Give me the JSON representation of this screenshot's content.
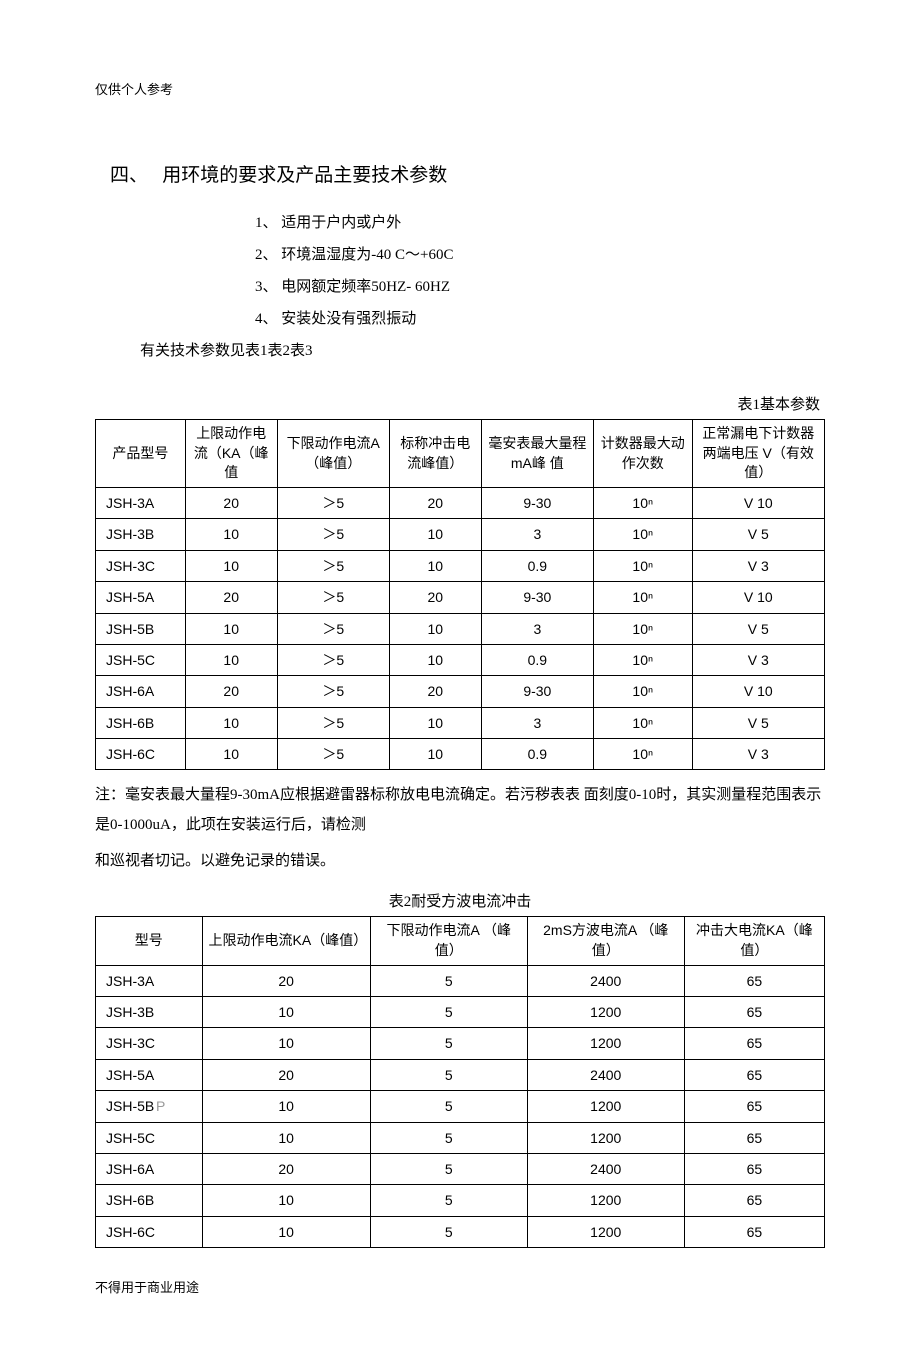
{
  "header_note": "仅供个人参考",
  "footer_note": "不得用于商业用途",
  "section": {
    "number": "四、",
    "title": "用环境的要求及产品主要技术参数",
    "env_items": [
      "1、 适用于户内或户外",
      "2、 环境温湿度为-40 C～+60C",
      "3、 电网额定频率50HZ- 60HZ",
      "4、 安装处没有强烈振动"
    ],
    "param_note": "有关技术参数见表1表2表3"
  },
  "table1": {
    "caption": "表1基本参数",
    "headers": [
      "产品型号",
      "上限动作电流（KA（峰值",
      "下限动作电流A （峰值）",
      "标称冲击电流峰值）",
      "毫安表最大量程mA峰 值",
      "计数器最大动作次数",
      "正常漏电下计数器两端电压 V（有效值）"
    ],
    "col_widths": [
      "80",
      "82",
      "100",
      "82",
      "100",
      "88",
      "118"
    ],
    "rows": [
      [
        "JSH-3A",
        "20",
        "＞5",
        "20",
        "9-30",
        "10ⁿ",
        "V 10"
      ],
      [
        "JSH-3B",
        "10",
        "＞5",
        "10",
        "3",
        "10ⁿ",
        "V 5"
      ],
      [
        "JSH-3C",
        "10",
        "＞5",
        "10",
        "0.9",
        "10ⁿ",
        "V 3"
      ],
      [
        "JSH-5A",
        "20",
        "＞5",
        "20",
        "9-30",
        "10ⁿ",
        "V 10"
      ],
      [
        "JSH-5B",
        "10",
        "＞5",
        "10",
        "3",
        "10ⁿ",
        "V 5"
      ],
      [
        "JSH-5C",
        "10",
        "＞5",
        "10",
        "0.9",
        "10ⁿ",
        "V 3"
      ],
      [
        "JSH-6A",
        "20",
        "＞5",
        "20",
        "9-30",
        "10ⁿ",
        "V 10"
      ],
      [
        "JSH-6B",
        "10",
        "＞5",
        "10",
        "3",
        "10ⁿ",
        "V 5"
      ],
      [
        "JSH-6C",
        "10",
        "＞5",
        "10",
        "0.9",
        "10ⁿ",
        "V 3"
      ]
    ],
    "note": "注：毫安表最大量程9-30mA应根据避雷器标称放电电流确定。若污秽表表 面刻度0-10时，其实测量程范围表示是0-1000uA，此项在安装运行后，请检测",
    "note2": "和巡视者切记。以避免记录的错误。"
  },
  "table2": {
    "caption": "表2耐受方波电流冲击",
    "headers": [
      "型号",
      "上限动作电流KA（峰值）",
      "下限动作电流A （峰值）",
      "2mS方波电流A （峰值）",
      "冲击大电流KA（峰值）"
    ],
    "col_widths": [
      "95",
      "150",
      "140",
      "140",
      "125"
    ],
    "rows": [
      [
        "JSH-3A",
        "20",
        "5",
        "2400",
        "65"
      ],
      [
        "JSH-3B",
        "10",
        "5",
        "1200",
        "65"
      ],
      [
        "JSH-3C",
        "10",
        "5",
        "1200",
        "65"
      ],
      [
        "JSH-5A",
        "20",
        "5",
        "2400",
        "65"
      ],
      [
        "JSH-5B",
        "10",
        "5",
        "1200",
        "65"
      ],
      [
        "JSH-5C",
        "10",
        "5",
        "1200",
        "65"
      ],
      [
        "JSH-6A",
        "20",
        "5",
        "2400",
        "65"
      ],
      [
        "JSH-6B",
        "10",
        "5",
        "1200",
        "65"
      ],
      [
        "JSH-6C",
        "10",
        "5",
        "1200",
        "65"
      ]
    ],
    "p_row_index": 4
  }
}
